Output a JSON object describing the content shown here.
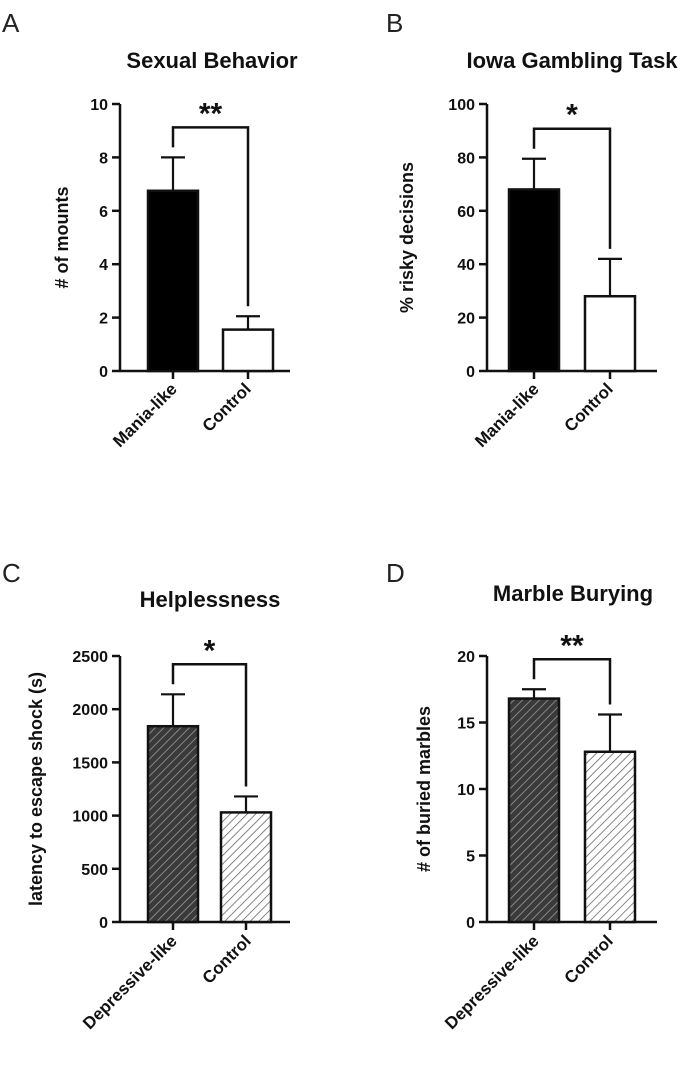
{
  "chart_data": [
    {
      "panel": "A",
      "type": "bar",
      "title": "Sexual Behavior",
      "xlabel": "",
      "ylabel": "# of mounts",
      "ylim": [
        0,
        10
      ],
      "yticks": [
        0,
        2,
        4,
        6,
        8,
        10
      ],
      "ytick_labels": [
        "0",
        "2",
        "4",
        "6",
        "8",
        "10"
      ],
      "categories": [
        "Mania-like",
        "Control"
      ],
      "values": [
        6.75,
        1.55
      ],
      "errors": [
        1.25,
        0.5
      ],
      "fills": [
        "solid",
        "white"
      ],
      "significance": "**"
    },
    {
      "panel": "B",
      "type": "bar",
      "title": "Iowa Gambling Task",
      "xlabel": "",
      "ylabel": "% risky decisions",
      "ylim": [
        0,
        100
      ],
      "yticks": [
        0,
        20,
        40,
        60,
        80,
        100
      ],
      "ytick_labels": [
        "0",
        "20",
        "40",
        "60",
        "80",
        "100"
      ],
      "categories": [
        "Mania-like",
        "Control"
      ],
      "values": [
        68,
        28
      ],
      "errors": [
        11.5,
        14
      ],
      "fills": [
        "solid",
        "white"
      ],
      "significance": "*"
    },
    {
      "panel": "C",
      "type": "bar",
      "title": "Helplessness",
      "xlabel": "",
      "ylabel": "latency to escape shock (s)",
      "ylim": [
        0,
        2500
      ],
      "yticks": [
        0,
        500,
        1000,
        1500,
        2000,
        2500
      ],
      "ytick_labels": [
        "0",
        "500",
        "1000",
        "1500",
        "2000",
        "2500"
      ],
      "categories": [
        "Depressive-like",
        "Control"
      ],
      "values": [
        1840,
        1030
      ],
      "errors": [
        300,
        150
      ],
      "fills": [
        "dark-hatch",
        "light-hatch"
      ],
      "significance": "*"
    },
    {
      "panel": "D",
      "type": "bar",
      "title": "Marble Burying",
      "xlabel": "",
      "ylabel": "# of buried marbles",
      "ylim": [
        0,
        20
      ],
      "yticks": [
        0,
        5,
        10,
        15,
        20
      ],
      "ytick_labels": [
        "0",
        "5",
        "10",
        "15",
        "20"
      ],
      "categories": [
        "Depressive-like",
        "Control"
      ],
      "values": [
        16.8,
        12.8
      ],
      "errors": [
        0.7,
        2.8
      ],
      "fills": [
        "dark-hatch",
        "light-hatch"
      ],
      "significance": "**"
    }
  ],
  "colors": {
    "solid": "#000000",
    "white": "#ffffff",
    "dark-hatch": "#444444",
    "light-hatch": "#ffffff",
    "ink": "#111111"
  }
}
